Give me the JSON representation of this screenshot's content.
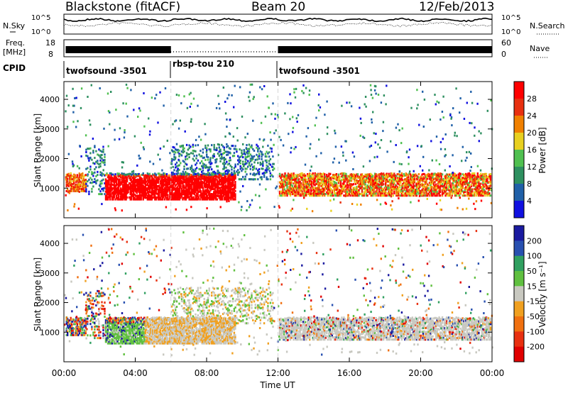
{
  "header": {
    "station": "Blackstone (fitACF)",
    "beam": "Beam 20",
    "date": "12/Feb/2013"
  },
  "noise_panel": {
    "left_label": "N.Sky",
    "right_label": "N.Search",
    "ticks": [
      "10^5",
      "10^0"
    ]
  },
  "freq_panel": {
    "left_label_1": "Freq.",
    "left_label_2": "[MHz]",
    "left_ticks": [
      "18",
      "8"
    ],
    "right_label": "Nave",
    "right_ticks": [
      "60",
      "0"
    ]
  },
  "cpid_panel": {
    "label": "CPID",
    "segments": [
      "twofsound -3501",
      "rbsp-tou 210",
      "twofsound -3501"
    ]
  },
  "colors": {
    "power": [
      "#1010e0",
      "#2060a8",
      "#2e9060",
      "#50c050",
      "#e8d020",
      "#f08000",
      "#e83010",
      "#ff0000"
    ],
    "velocity": [
      "#1a1aa0",
      "#2850b0",
      "#30a060",
      "#60c040",
      "#c8c8c0",
      "#f0a020",
      "#f07010",
      "#e83010",
      "#e00000"
    ]
  },
  "chart_data": [
    {
      "type": "heatmap",
      "title": "",
      "xlabel": "Time UT",
      "ylabel": "Slant Range [km]",
      "xlim": [
        "00:00",
        "24:00"
      ],
      "ylim": [
        0,
        4600
      ],
      "x_ticks": [
        "00:00",
        "04:00",
        "08:00",
        "12:00",
        "16:00",
        "20:00",
        "00:00"
      ],
      "y_ticks": [
        "1000",
        "2000",
        "3000",
        "4000"
      ],
      "colorbar": {
        "label": "Power [dB]",
        "ticks": [
          "4",
          "8",
          "12",
          "16",
          "20",
          "24",
          "28"
        ],
        "range": [
          0,
          30
        ]
      }
    },
    {
      "type": "heatmap",
      "title": "",
      "xlabel": "Time UT",
      "ylabel": "Slant Range [km]",
      "xlim": [
        "00:00",
        "24:00"
      ],
      "ylim": [
        0,
        4600
      ],
      "x_ticks": [
        "00:00",
        "04:00",
        "08:00",
        "12:00",
        "16:00",
        "20:00",
        "00:00"
      ],
      "y_ticks": [
        "1000",
        "2000",
        "3000",
        "4000"
      ],
      "colorbar": {
        "label": "Velocity [m s⁻¹]",
        "ticks": [
          "200",
          "100",
          "50",
          "15",
          "-15",
          "-50",
          "-100",
          "-200"
        ]
      }
    }
  ]
}
